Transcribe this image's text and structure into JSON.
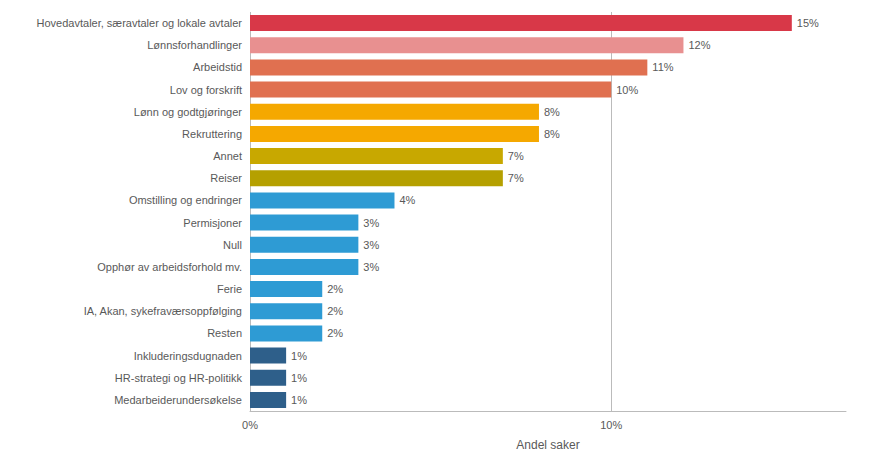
{
  "chart_data": {
    "type": "bar",
    "orientation": "horizontal",
    "categories": [
      "Medarbeiderundersøkelse",
      "HR-strategi og HR-politikk",
      "Inkluderingsdugnaden",
      "Resten",
      "IA, Akan, sykefraværsoppfølging",
      "Ferie",
      "Opphør av arbeidsforhold mv.",
      "Null",
      "Permisjoner",
      "Omstilling og endringer",
      "Reiser",
      "Annet",
      "Rekruttering",
      "Lønn og godtgjøringer",
      "Lov og forskrift",
      "Arbeidstid",
      "Lønnsforhandlinger",
      "Hovedavtaler, særavtaler og lokale avtaler"
    ],
    "values": [
      1,
      1,
      1,
      2,
      2,
      2,
      3,
      3,
      3,
      4,
      7,
      7,
      8,
      8,
      10,
      11,
      12,
      15
    ],
    "value_labels": [
      "1%",
      "1%",
      "1%",
      "2%",
      "2%",
      "2%",
      "3%",
      "3%",
      "3%",
      "4%",
      "7%",
      "7%",
      "8%",
      "8%",
      "10%",
      "11%",
      "12%",
      "15%"
    ],
    "data_labels": true,
    "colors": [
      "#2e5f8a",
      "#2e5f8a",
      "#2e5f8a",
      "#2e9bd4",
      "#2e9bd4",
      "#2e9bd4",
      "#2e9bd4",
      "#2e9bd4",
      "#2e9bd4",
      "#2e9bd4",
      "#b5a000",
      "#c8a800",
      "#f5a800",
      "#f5a800",
      "#e07050",
      "#e07050",
      "#e89090",
      "#d83848"
    ],
    "xlabel": "Andel saker",
    "xlim": [
      0,
      16.5
    ],
    "xticks": [
      {
        "value": 0,
        "label": "0%"
      },
      {
        "value": 10,
        "label": "10%"
      }
    ],
    "grid": true
  }
}
